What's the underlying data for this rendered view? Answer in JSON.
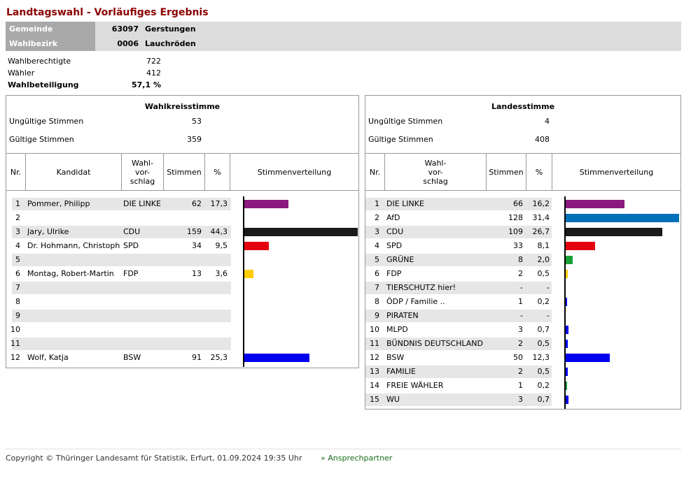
{
  "title": "Landtagswahl - Vorläufiges Ergebnis",
  "gemeinde": {
    "label": "Gemeinde",
    "number": "63097",
    "name": "Gerstungen"
  },
  "wahlbezirk": {
    "label": "Wahlbezirk",
    "number": "0006",
    "name": "Lauchröden"
  },
  "stats": [
    {
      "label": "Wahlberechtigte",
      "value": "722",
      "bold": false
    },
    {
      "label": "Wähler",
      "value": "412",
      "bold": false
    },
    {
      "label": "Wahlbeteiligung",
      "value": "57,1 %",
      "bold": true
    }
  ],
  "wahlkreis": {
    "title": "Wahlkreisstimme",
    "ungueltig_label": "Ungültige Stimmen",
    "ungueltig": "53",
    "gueltig_label": "Gültige Stimmen",
    "gueltig": "359",
    "headers": {
      "nr": "Nr.",
      "kandidat": "Kandidat",
      "vorschlag": "Wahl-\nvor-\nschlag",
      "stimmen": "Stimmen",
      "pct": "%",
      "vert": "Stimmenverteilung"
    },
    "rows": [
      {
        "nr": "1",
        "name": "Pommer, Philipp",
        "party": "DIE LINKE",
        "stimmen": "62",
        "pct": "17,3",
        "value": 17.3,
        "color": "#8b1a7e"
      },
      {
        "nr": "2",
        "name": "",
        "party": "",
        "stimmen": "",
        "pct": "",
        "value": 0,
        "color": ""
      },
      {
        "nr": "3",
        "name": "Jary, Ulrike",
        "party": "CDU",
        "stimmen": "159",
        "pct": "44,3",
        "value": 44.3,
        "color": "#1a1a1a"
      },
      {
        "nr": "4",
        "name": "Dr. Hohmann, Christoph",
        "party": "SPD",
        "stimmen": "34",
        "pct": "9,5",
        "value": 9.5,
        "color": "#e3000f"
      },
      {
        "nr": "5",
        "name": "",
        "party": "",
        "stimmen": "",
        "pct": "",
        "value": 0,
        "color": ""
      },
      {
        "nr": "6",
        "name": "Montag, Robert-Martin",
        "party": "FDP",
        "stimmen": "13",
        "pct": "3,6",
        "value": 3.6,
        "color": "#ffcc00"
      },
      {
        "nr": "7",
        "name": "",
        "party": "",
        "stimmen": "",
        "pct": "",
        "value": 0,
        "color": ""
      },
      {
        "nr": "8",
        "name": "",
        "party": "",
        "stimmen": "",
        "pct": "",
        "value": 0,
        "color": ""
      },
      {
        "nr": "9",
        "name": "",
        "party": "",
        "stimmen": "",
        "pct": "",
        "value": 0,
        "color": ""
      },
      {
        "nr": "10",
        "name": "",
        "party": "",
        "stimmen": "",
        "pct": "",
        "value": 0,
        "color": ""
      },
      {
        "nr": "11",
        "name": "",
        "party": "",
        "stimmen": "",
        "pct": "",
        "value": 0,
        "color": ""
      },
      {
        "nr": "12",
        "name": "Wolf, Katja",
        "party": "BSW",
        "stimmen": "91",
        "pct": "25,3",
        "value": 25.3,
        "color": "#0000ee"
      }
    ]
  },
  "landes": {
    "title": "Landesstimme",
    "ungueltig_label": "Ungültige Stimmen",
    "ungueltig": "4",
    "gueltig_label": "Gültige Stimmen",
    "gueltig": "408",
    "headers": {
      "nr": "Nr.",
      "vorschlag": "Wahl-\nvor-\nschlag",
      "stimmen": "Stimmen",
      "pct": "%",
      "vert": "Stimmenverteilung"
    },
    "rows": [
      {
        "nr": "1",
        "party": "DIE LINKE",
        "stimmen": "66",
        "pct": "16,2",
        "value": 16.2,
        "color": "#8b1a7e"
      },
      {
        "nr": "2",
        "party": "AfD",
        "stimmen": "128",
        "pct": "31,4",
        "value": 31.4,
        "color": "#0070b8"
      },
      {
        "nr": "3",
        "party": "CDU",
        "stimmen": "109",
        "pct": "26,7",
        "value": 26.7,
        "color": "#1a1a1a"
      },
      {
        "nr": "4",
        "party": "SPD",
        "stimmen": "33",
        "pct": "8,1",
        "value": 8.1,
        "color": "#e3000f"
      },
      {
        "nr": "5",
        "party": "GRÜNE",
        "stimmen": "8",
        "pct": "2,0",
        "value": 2.0,
        "color": "#1aa037"
      },
      {
        "nr": "6",
        "party": "FDP",
        "stimmen": "2",
        "pct": "0,5",
        "value": 0.5,
        "color": "#ffcc00"
      },
      {
        "nr": "7",
        "party": "TIERSCHUTZ hier!",
        "stimmen": "-",
        "pct": "-",
        "value": 0,
        "color": ""
      },
      {
        "nr": "8",
        "party": "ÖDP / Familie ..",
        "stimmen": "1",
        "pct": "0,2",
        "value": 0.2,
        "color": "#0000ee"
      },
      {
        "nr": "9",
        "party": "PIRATEN",
        "stimmen": "-",
        "pct": "-",
        "value": 0,
        "color": ""
      },
      {
        "nr": "10",
        "party": "MLPD",
        "stimmen": "3",
        "pct": "0,7",
        "value": 0.7,
        "color": "#0000ee"
      },
      {
        "nr": "11",
        "party": "BÜNDNIS DEUTSCHLAND",
        "stimmen": "2",
        "pct": "0,5",
        "value": 0.5,
        "color": "#0000ee"
      },
      {
        "nr": "12",
        "party": "BSW",
        "stimmen": "50",
        "pct": "12,3",
        "value": 12.3,
        "color": "#0000ee"
      },
      {
        "nr": "13",
        "party": "FAMILIE",
        "stimmen": "2",
        "pct": "0,5",
        "value": 0.5,
        "color": "#0000ee"
      },
      {
        "nr": "14",
        "party": "FREIE WÄHLER",
        "stimmen": "1",
        "pct": "0,2",
        "value": 0.2,
        "color": "#1aa037"
      },
      {
        "nr": "15",
        "party": "WU",
        "stimmen": "3",
        "pct": "0,7",
        "value": 0.7,
        "color": "#0000ee"
      }
    ]
  },
  "footer": {
    "copyright": "Copyright © Thüringer Landesamt für Statistik, Erfurt, 01.09.2024 19:35 Uhr",
    "link": "» Ansprechpartner"
  }
}
